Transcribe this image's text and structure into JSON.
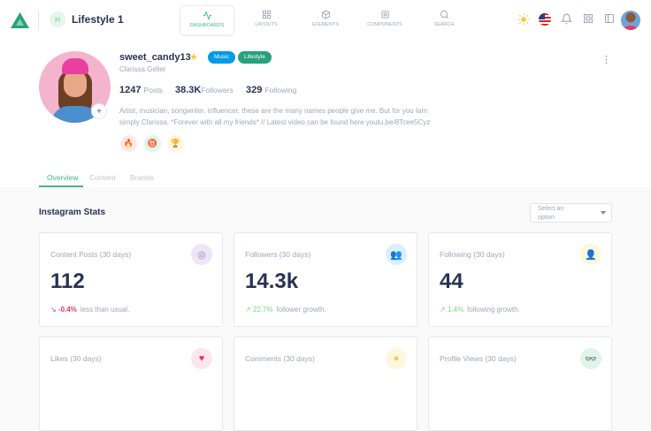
{
  "header": {
    "app_initial": "H",
    "app_name": "Lifestyle 1",
    "nav": [
      {
        "label": "Dashboards",
        "icon": "activity-icon",
        "active": true
      },
      {
        "label": "Layouts",
        "icon": "grid-icon"
      },
      {
        "label": "Elements",
        "icon": "box-icon"
      },
      {
        "label": "Components",
        "icon": "cpu-icon"
      },
      {
        "label": "Search",
        "icon": "search-icon"
      }
    ]
  },
  "profile": {
    "username": "sweet_candy13",
    "tags": [
      {
        "label": "Music",
        "color": "#039be5"
      },
      {
        "label": "Lifestyle",
        "color": "#26a17b"
      }
    ],
    "name": "Clarissa Geller",
    "stats": [
      {
        "value": "1247",
        "label": "Posts"
      },
      {
        "value": "38.3K",
        "label": "Followers"
      },
      {
        "value": "329",
        "label": "Following"
      }
    ],
    "bio": "Artist, musician, songwriter, influencer, these are the many names people give me. But for you Iam simply Clarissa. *Forever with all my friends* // Latest video can be found here youtu.be/8Tcee5Cyz",
    "achievements": [
      {
        "icon": "fire-icon",
        "color": "#e8356a",
        "bg": "#fde6ee"
      },
      {
        "icon": "medal-icon",
        "color": "#26a17b",
        "bg": "#dff5ec"
      },
      {
        "icon": "trophy-icon",
        "color": "#f7c948",
        "bg": "#fff7dd"
      }
    ]
  },
  "tabs": [
    "Overview",
    "Content",
    "Brands"
  ],
  "section": {
    "title": "Instagram Stats",
    "select_placeholder": "Select an option"
  },
  "cards": [
    {
      "label": "Content Posts (30 days)",
      "value": "112",
      "change": "-0.4%",
      "desc": "less than usual.",
      "trend": "down",
      "icon": "instagram-icon",
      "color": "#9b7fc9",
      "bg": "#ece6f6"
    },
    {
      "label": "Followers (30 days)",
      "value": "14.3k",
      "change": "22.7%",
      "desc": "follower growth.",
      "trend": "up",
      "icon": "users-icon",
      "color": "#1e88e5",
      "bg": "#dcefff"
    },
    {
      "label": "Following (30 days)",
      "value": "44",
      "change": "1.4%",
      "desc": "following growth.",
      "trend": "up",
      "icon": "user-plus-icon",
      "color": "#f7c948",
      "bg": "#fff7dd"
    },
    {
      "label": "Likes (30 days)",
      "icon": "heart-icon",
      "color": "#e8356a",
      "bg": "#fde6ee"
    },
    {
      "label": "Comments (30 days)",
      "icon": "comment-icon",
      "color": "#f7c948",
      "bg": "#fff7dd"
    },
    {
      "label": "Profile Views (30 days)",
      "icon": "glasses-icon",
      "color": "#26a17b",
      "bg": "#dff5ec"
    }
  ]
}
